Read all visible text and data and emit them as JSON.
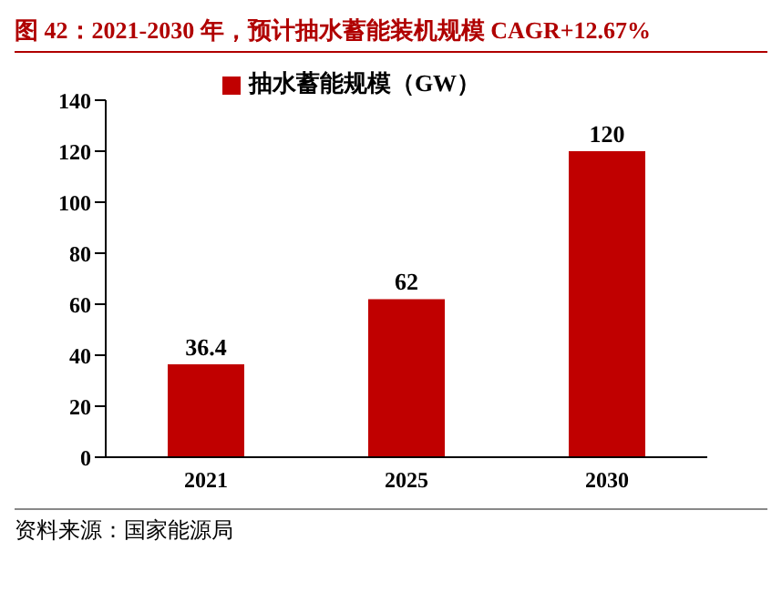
{
  "chart_data": {
    "type": "bar",
    "title": "图 42：2021-2030 年，预计抽水蓄能装机规模 CAGR+12.67%",
    "categories": [
      "2021",
      "2025",
      "2030"
    ],
    "series": [
      {
        "name": "抽水蓄能规模（GW）",
        "color": "#c00000",
        "values": [
          36.4,
          62,
          120
        ]
      }
    ],
    "ylim": [
      0,
      140
    ],
    "yticks": [
      0,
      20,
      40,
      60,
      80,
      100,
      120,
      140
    ],
    "grid": false,
    "legend": "top",
    "data_labels": true,
    "annotations": [
      "资料来源：国家能源局"
    ]
  }
}
